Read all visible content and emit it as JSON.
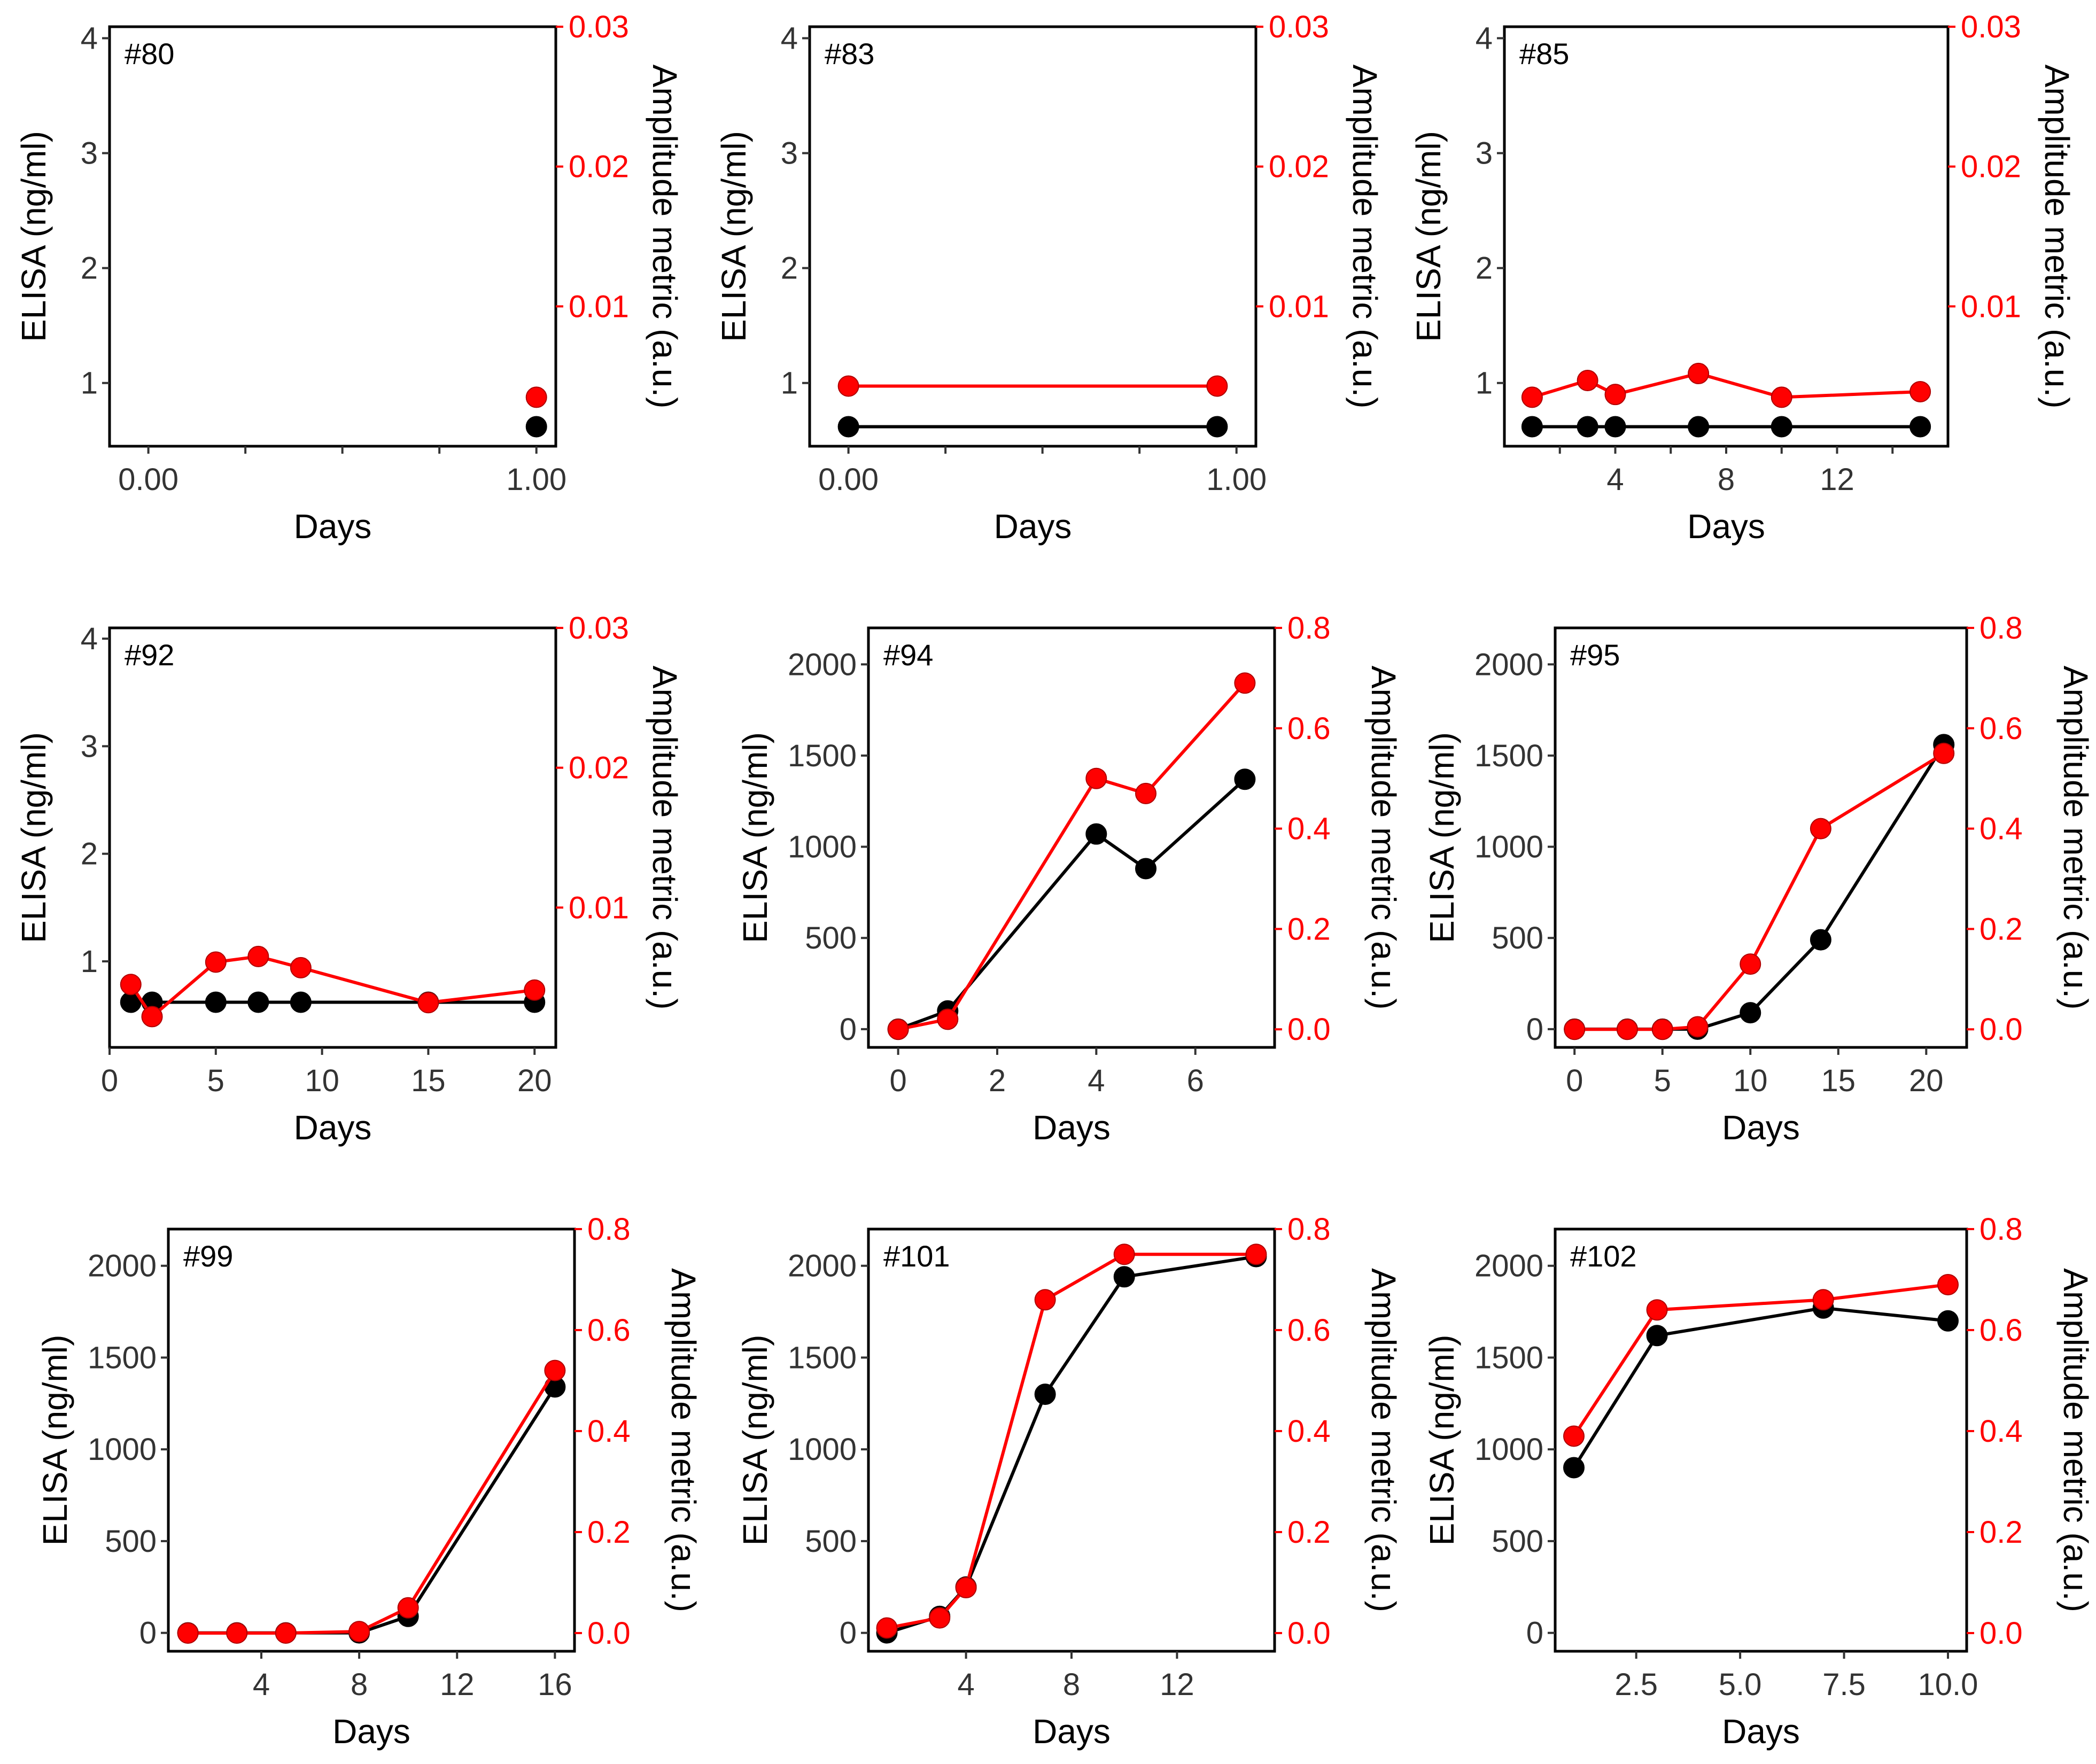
{
  "colors": {
    "elisa": "#000000",
    "amplitude": "#ff0000"
  },
  "chart_data": [
    {
      "type": "line",
      "panel": "#80",
      "xlabel": "Days",
      "ylabel": "ELISA (ng/ml)",
      "y2label": "Amplitude metric (a.u.)",
      "xlim": [
        -0.1,
        1.05
      ],
      "xticks": [
        0,
        1
      ],
      "xtick_labels": [
        "0.00",
        "1.00"
      ],
      "xminor": [
        0.25,
        0.5,
        0.75
      ],
      "ylim": [
        0.45,
        4.1
      ],
      "yticks": [
        1,
        2,
        3,
        4
      ],
      "ytick_labels": [
        "1",
        "2",
        "3",
        "4"
      ],
      "y2lim": [
        0,
        0.03
      ],
      "y2ticks": [
        0.01,
        0.02,
        0.03
      ],
      "y2tick_labels": [
        "0.01",
        "0.02",
        "0.03"
      ],
      "series": [
        {
          "axis": "left",
          "x": [
            1
          ],
          "y": [
            0.62
          ]
        },
        {
          "axis": "right",
          "x": [
            1
          ],
          "y": [
            0.0035
          ]
        }
      ]
    },
    {
      "type": "line",
      "panel": "#83",
      "xlabel": "Days",
      "ylabel": "ELISA (ng/ml)",
      "y2label": "Amplitude metric (a.u.)",
      "xlim": [
        -0.1,
        1.05
      ],
      "xticks": [
        0,
        1
      ],
      "xtick_labels": [
        "0.00",
        "1.00"
      ],
      "xminor": [
        0.25,
        0.5,
        0.75
      ],
      "ylim": [
        0.45,
        4.1
      ],
      "yticks": [
        1,
        2,
        3,
        4
      ],
      "ytick_labels": [
        "1",
        "2",
        "3",
        "4"
      ],
      "y2lim": [
        0,
        0.03
      ],
      "y2ticks": [
        0.01,
        0.02,
        0.03
      ],
      "y2tick_labels": [
        "0.01",
        "0.02",
        "0.03"
      ],
      "series": [
        {
          "axis": "left",
          "x": [
            0,
            0.95
          ],
          "y": [
            0.62,
            0.62
          ]
        },
        {
          "axis": "right",
          "x": [
            0,
            0.95
          ],
          "y": [
            0.0043,
            0.0043
          ]
        }
      ]
    },
    {
      "type": "line",
      "panel": "#85",
      "xlabel": "Days",
      "ylabel": "ELISA (ng/ml)",
      "y2label": "Amplitude metric (a.u.)",
      "xlim": [
        0,
        16
      ],
      "xticks": [
        4,
        8,
        12
      ],
      "xtick_labels": [
        "4",
        "8",
        "12"
      ],
      "xminor": [
        2,
        6,
        10,
        14
      ],
      "ylim": [
        0.45,
        4.1
      ],
      "yticks": [
        1,
        2,
        3,
        4
      ],
      "ytick_labels": [
        "1",
        "2",
        "3",
        "4"
      ],
      "y2lim": [
        0,
        0.03
      ],
      "y2ticks": [
        0.01,
        0.02,
        0.03
      ],
      "y2tick_labels": [
        "0.01",
        "0.02",
        "0.03"
      ],
      "series": [
        {
          "axis": "left",
          "x": [
            1,
            3,
            4,
            7,
            10,
            15
          ],
          "y": [
            0.62,
            0.62,
            0.62,
            0.62,
            0.62,
            0.62
          ]
        },
        {
          "axis": "right",
          "x": [
            1,
            3,
            4,
            7,
            10,
            15
          ],
          "y": [
            0.0035,
            0.0047,
            0.0037,
            0.0052,
            0.0035,
            0.0039
          ]
        }
      ]
    },
    {
      "type": "line",
      "panel": "#92",
      "xlabel": "Days",
      "ylabel": "ELISA (ng/ml)",
      "y2label": "Amplitude metric (a.u.)",
      "xlim": [
        0,
        21
      ],
      "xticks": [
        0,
        5,
        10,
        15,
        20
      ],
      "xtick_labels": [
        "0",
        "5",
        "10",
        "15",
        "20"
      ],
      "xminor": [],
      "ylim": [
        0.2,
        4.1
      ],
      "yticks": [
        1,
        2,
        3,
        4
      ],
      "ytick_labels": [
        "1",
        "2",
        "3",
        "4"
      ],
      "y2lim": [
        0,
        0.03
      ],
      "y2ticks": [
        0.01,
        0.02,
        0.03
      ],
      "y2tick_labels": [
        "0.01",
        "0.02",
        "0.03"
      ],
      "series": [
        {
          "axis": "left",
          "x": [
            1,
            2,
            5,
            7,
            9,
            15,
            20
          ],
          "y": [
            0.62,
            0.62,
            0.62,
            0.62,
            0.62,
            0.62,
            0.62
          ]
        },
        {
          "axis": "right",
          "x": [
            1,
            2,
            5,
            7,
            9,
            15,
            20
          ],
          "y": [
            0.0045,
            0.0022,
            0.0061,
            0.0065,
            0.0057,
            0.0032,
            0.0041
          ]
        }
      ]
    },
    {
      "type": "line",
      "panel": "#94",
      "xlabel": "Days",
      "ylabel": "ELISA (ng/ml)",
      "y2label": "Amplitude metric (a.u.)",
      "xlim": [
        -0.6,
        7.6
      ],
      "xticks": [
        0,
        2,
        4,
        6
      ],
      "xtick_labels": [
        "0",
        "2",
        "4",
        "6"
      ],
      "xminor": [],
      "ylim": [
        -100,
        2200
      ],
      "yticks": [
        0,
        500,
        1000,
        1500,
        2000
      ],
      "ytick_labels": [
        "0",
        "500",
        "1000",
        "1500",
        "2000"
      ],
      "y2lim": [
        -0.036,
        0.8
      ],
      "y2ticks": [
        0,
        0.2,
        0.4,
        0.6,
        0.8
      ],
      "y2tick_labels": [
        "0.0",
        "0.2",
        "0.4",
        "0.6",
        "0.8"
      ],
      "series": [
        {
          "axis": "left",
          "x": [
            0,
            1,
            4,
            5,
            7
          ],
          "y": [
            0,
            100,
            1070,
            880,
            1370
          ]
        },
        {
          "axis": "right",
          "x": [
            0,
            1,
            4,
            5,
            7
          ],
          "y": [
            0.0,
            0.02,
            0.5,
            0.47,
            0.69
          ]
        }
      ]
    },
    {
      "type": "line",
      "panel": "#95",
      "xlabel": "Days",
      "ylabel": "ELISA (ng/ml)",
      "y2label": "Amplitude metric (a.u.)",
      "xlim": [
        -1.1,
        22.3
      ],
      "xticks": [
        0,
        5,
        10,
        15,
        20
      ],
      "xtick_labels": [
        "0",
        "5",
        "10",
        "15",
        "20"
      ],
      "xminor": [],
      "ylim": [
        -100,
        2200
      ],
      "yticks": [
        0,
        500,
        1000,
        1500,
        2000
      ],
      "ytick_labels": [
        "0",
        "500",
        "1000",
        "1500",
        "2000"
      ],
      "y2lim": [
        -0.036,
        0.8
      ],
      "y2ticks": [
        0,
        0.2,
        0.4,
        0.6,
        0.8
      ],
      "y2tick_labels": [
        "0.0",
        "0.2",
        "0.4",
        "0.6",
        "0.8"
      ],
      "series": [
        {
          "axis": "left",
          "x": [
            0,
            3,
            5,
            7,
            10,
            14,
            21
          ],
          "y": [
            0,
            0,
            0,
            0,
            90,
            490,
            1560
          ]
        },
        {
          "axis": "right",
          "x": [
            0,
            3,
            5,
            7,
            10,
            14,
            21
          ],
          "y": [
            0.0,
            0.0,
            0.0,
            0.005,
            0.13,
            0.4,
            0.55
          ]
        }
      ]
    },
    {
      "type": "line",
      "panel": "#99",
      "xlabel": "Days",
      "ylabel": "ELISA (ng/ml)",
      "y2label": "Amplitude metric (a.u.)",
      "xlim": [
        0.2,
        16.8
      ],
      "xticks": [
        4,
        8,
        12,
        16
      ],
      "xtick_labels": [
        "4",
        "8",
        "12",
        "16"
      ],
      "xminor": [],
      "ylim": [
        -100,
        2200
      ],
      "yticks": [
        0,
        500,
        1000,
        1500,
        2000
      ],
      "ytick_labels": [
        "0",
        "500",
        "1000",
        "1500",
        "2000"
      ],
      "y2lim": [
        -0.036,
        0.8
      ],
      "y2ticks": [
        0,
        0.2,
        0.4,
        0.6,
        0.8
      ],
      "y2tick_labels": [
        "0.0",
        "0.2",
        "0.4",
        "0.6",
        "0.8"
      ],
      "series": [
        {
          "axis": "left",
          "x": [
            1,
            3,
            5,
            8,
            10,
            16
          ],
          "y": [
            0,
            0,
            0,
            0,
            90,
            1340
          ]
        },
        {
          "axis": "right",
          "x": [
            1,
            3,
            5,
            8,
            10,
            16
          ],
          "y": [
            0.0,
            0.0,
            0.0,
            0.003,
            0.05,
            0.52
          ]
        }
      ]
    },
    {
      "type": "line",
      "panel": "#101",
      "xlabel": "Days",
      "ylabel": "ELISA (ng/ml)",
      "y2label": "Amplitude metric (a.u.)",
      "xlim": [
        0.3,
        15.7
      ],
      "xticks": [
        4,
        8,
        12
      ],
      "xtick_labels": [
        "4",
        "8",
        "12"
      ],
      "xminor": [],
      "ylim": [
        -100,
        2200
      ],
      "yticks": [
        0,
        500,
        1000,
        1500,
        2000
      ],
      "ytick_labels": [
        "0",
        "500",
        "1000",
        "1500",
        "2000"
      ],
      "y2lim": [
        -0.036,
        0.8
      ],
      "y2ticks": [
        0,
        0.2,
        0.4,
        0.6,
        0.8
      ],
      "y2tick_labels": [
        "0.0",
        "0.2",
        "0.4",
        "0.6",
        "0.8"
      ],
      "series": [
        {
          "axis": "left",
          "x": [
            1,
            3,
            4,
            7,
            10,
            15
          ],
          "y": [
            0,
            90,
            250,
            1300,
            1940,
            2050
          ]
        },
        {
          "axis": "right",
          "x": [
            1,
            3,
            4,
            7,
            10,
            15
          ],
          "y": [
            0.01,
            0.03,
            0.09,
            0.66,
            0.75,
            0.75
          ]
        }
      ]
    },
    {
      "type": "line",
      "panel": "#102",
      "xlabel": "Days",
      "ylabel": "ELISA (ng/ml)",
      "y2label": "Amplitude metric (a.u.)",
      "xlim": [
        0.55,
        10.45
      ],
      "xticks": [
        2.5,
        5,
        7.5,
        10
      ],
      "xtick_labels": [
        "2.5",
        "5.0",
        "7.5",
        "10.0"
      ],
      "xminor": [],
      "ylim": [
        -100,
        2200
      ],
      "yticks": [
        0,
        500,
        1000,
        1500,
        2000
      ],
      "ytick_labels": [
        "0",
        "500",
        "1000",
        "1500",
        "2000"
      ],
      "y2lim": [
        -0.036,
        0.8
      ],
      "y2ticks": [
        0,
        0.2,
        0.4,
        0.6,
        0.8
      ],
      "y2tick_labels": [
        "0.0",
        "0.2",
        "0.4",
        "0.6",
        "0.8"
      ],
      "series": [
        {
          "axis": "left",
          "x": [
            1,
            3,
            7,
            10
          ],
          "y": [
            900,
            1620,
            1770,
            1700
          ]
        },
        {
          "axis": "right",
          "x": [
            1,
            3,
            7,
            10
          ],
          "y": [
            0.39,
            0.64,
            0.66,
            0.69
          ]
        }
      ]
    }
  ]
}
